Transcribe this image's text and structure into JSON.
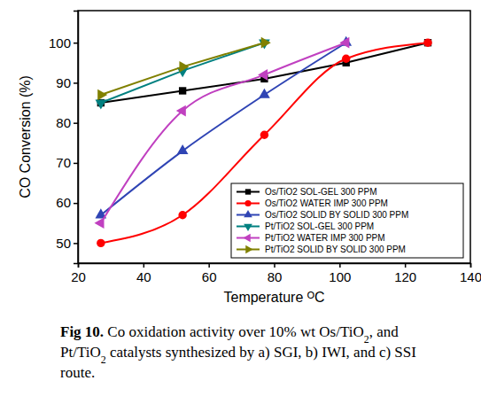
{
  "chart_data": {
    "type": "line",
    "x_label": "Temperature ᴼC",
    "y_label": "CO Conversion (%)",
    "caption_label": "Fig 10.",
    "caption": [
      "Co oxidation activity over 10% wt Os/TiO2, and",
      "Pt/TiO2 catalysts synthesized by a) SGI, b) IWI, and c) SSI",
      "route."
    ],
    "xlim": [
      20,
      140
    ],
    "xticks": [
      20,
      40,
      60,
      80,
      100,
      120,
      140
    ],
    "ylim": [
      45,
      108
    ],
    "yticks": [
      50,
      60,
      70,
      80,
      90,
      100
    ],
    "grid": false,
    "legend": "lower right",
    "series": [
      {
        "name": "Os/TiO2 SOL-GEL 300 PPM",
        "color": "#000000",
        "marker": "square",
        "line_style": "solid",
        "x": [
          27,
          52,
          77,
          102,
          127
        ],
        "values": [
          85,
          88,
          91,
          95,
          100
        ]
      },
      {
        "name": "Os/TiO2 WATER IMP 300 PPM",
        "color": "#ff0000",
        "marker": "circle",
        "line_style": "spline",
        "x": [
          27,
          52,
          77,
          102,
          127
        ],
        "values": [
          50,
          57,
          77,
          96,
          100
        ]
      },
      {
        "name": "Os/TiO2 SOLID BY SOLID 300 PPM",
        "color": "#2f44b4",
        "marker": "triangle-up",
        "line_style": "spline",
        "x": [
          27,
          52,
          77,
          102
        ],
        "values": [
          57,
          73,
          87,
          100
        ]
      },
      {
        "name": "Pt/TiO2 SOL-GEL 300 PPM",
        "color": "#008080",
        "marker": "triangle-down",
        "line_style": "solid",
        "x": [
          27,
          52,
          77
        ],
        "values": [
          85,
          93,
          100
        ]
      },
      {
        "name": "Pt/TiO2 WATER IMP 300 PPM",
        "color": "#c040c0",
        "marker": "triangle-left",
        "line_style": "spline",
        "x": [
          27,
          52,
          77,
          102
        ],
        "values": [
          55,
          83,
          92,
          100
        ]
      },
      {
        "name": "Pt/TiO2 SOLID BY SOLID 300 PPM",
        "color": "#808000",
        "marker": "triangle-right",
        "line_style": "solid",
        "x": [
          27,
          52,
          77
        ],
        "values": [
          87,
          94,
          100
        ]
      }
    ]
  }
}
